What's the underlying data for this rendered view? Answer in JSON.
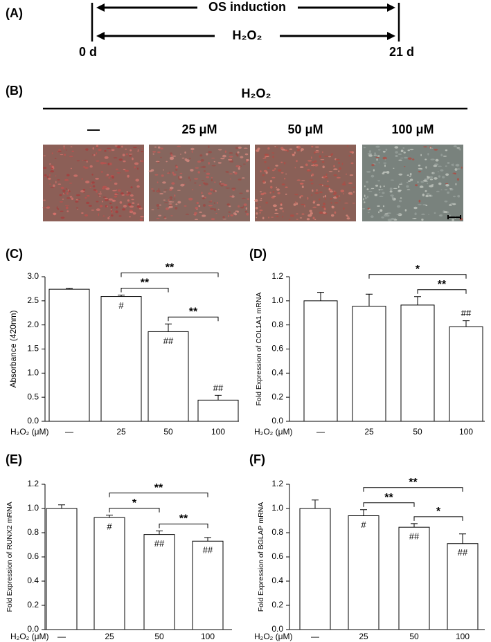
{
  "panel_a": {
    "label": "(A)",
    "top_arrow": "OS induction",
    "bottom_arrow": "H₂O₂",
    "start": "0 d",
    "end": "21 d"
  },
  "panel_b": {
    "label": "(B)",
    "title": "H₂O₂",
    "columns": [
      "—",
      "25 μM",
      "50 μM",
      "100 μM"
    ]
  },
  "chart_data": [
    {
      "type": "bar",
      "panel_label": "(C)",
      "ylabel": "Absorbance (420nm)",
      "xlabel": "H₂O₂ (μM)",
      "categories": [
        "—",
        "25",
        "50",
        "100"
      ],
      "values": [
        2.74,
        2.59,
        1.86,
        0.44
      ],
      "errors": [
        0.02,
        0.03,
        0.16,
        0.1
      ],
      "markers": [
        null,
        "#",
        "##",
        "##"
      ],
      "comparisons": [
        {
          "from": 1,
          "to": 3,
          "label": "**"
        },
        {
          "from": 1,
          "to": 2,
          "label": "**"
        },
        {
          "from": 2,
          "to": 3,
          "label": "**"
        }
      ],
      "color": "#ffffff",
      "ylim": [
        0,
        3
      ],
      "yticks": [
        {
          "value": 0,
          "label": "0.0"
        },
        0.5,
        {
          "value": 1,
          "label": "1.0"
        },
        1.5,
        {
          "value": 2,
          "label": "2.0"
        },
        2.5,
        {
          "value": 3,
          "label": "3.0"
        }
      ]
    },
    {
      "type": "bar",
      "panel_label": "(D)",
      "ylabel": "Fold Expression of COL1A1 mRNA",
      "xlabel": "H₂O₂ (μM)",
      "categories": [
        "—",
        "25",
        "50",
        "100"
      ],
      "values": [
        1.0,
        0.955,
        0.965,
        0.785
      ],
      "errors": [
        0.07,
        0.1,
        0.07,
        0.05
      ],
      "markers": [
        null,
        null,
        null,
        "##"
      ],
      "marker_placement": "above",
      "comparisons": [
        {
          "from": 1,
          "to": 3,
          "label": "*"
        },
        {
          "from": 2,
          "to": 3,
          "label": "**"
        }
      ],
      "color": "#ffffff",
      "ylim": [
        0,
        1.2
      ],
      "yticks": [
        {
          "value": 0,
          "label": "0.0"
        },
        0.2,
        0.4,
        0.6,
        0.8,
        {
          "value": 1,
          "label": "1.0"
        },
        1.2
      ]
    },
    {
      "type": "bar",
      "panel_label": "(E)",
      "ylabel": "Fold Expression of RUNX2 mRNA",
      "xlabel": "H₂O₂ (μM)",
      "categories": [
        "—",
        "25",
        "50",
        "100"
      ],
      "values": [
        1.0,
        0.925,
        0.785,
        0.73
      ],
      "errors": [
        0.03,
        0.02,
        0.03,
        0.03
      ],
      "markers": [
        null,
        "#",
        "##",
        "##"
      ],
      "comparisons": [
        {
          "from": 1,
          "to": 3,
          "label": "**"
        },
        {
          "from": 1,
          "to": 2,
          "label": "*"
        },
        {
          "from": 2,
          "to": 3,
          "label": "**"
        }
      ],
      "color": "#ffffff",
      "ylim": [
        0,
        1.2
      ],
      "yticks": [
        {
          "value": 0,
          "label": "0.0"
        },
        0.2,
        0.4,
        0.6,
        0.8,
        {
          "value": 1,
          "label": "1.0"
        },
        1.2
      ]
    },
    {
      "type": "bar",
      "panel_label": "(F)",
      "ylabel": "Fold Expression of BGLAP mRNA",
      "xlabel": "H₂O₂ (μM)",
      "categories": [
        "—",
        "25",
        "50",
        "100"
      ],
      "values": [
        1.0,
        0.94,
        0.845,
        0.71
      ],
      "errors": [
        0.07,
        0.05,
        0.03,
        0.08
      ],
      "markers": [
        null,
        "#",
        "##",
        "##"
      ],
      "comparisons": [
        {
          "from": 1,
          "to": 3,
          "label": "**"
        },
        {
          "from": 1,
          "to": 2,
          "label": "**"
        },
        {
          "from": 2,
          "to": 3,
          "label": "*"
        }
      ],
      "color": "#ffffff",
      "ylim": [
        0,
        1.2
      ],
      "yticks": [
        {
          "value": 0,
          "label": "0.0"
        },
        0.2,
        0.4,
        0.6,
        0.8,
        {
          "value": 1,
          "label": "1.0"
        },
        1.2
      ]
    }
  ]
}
